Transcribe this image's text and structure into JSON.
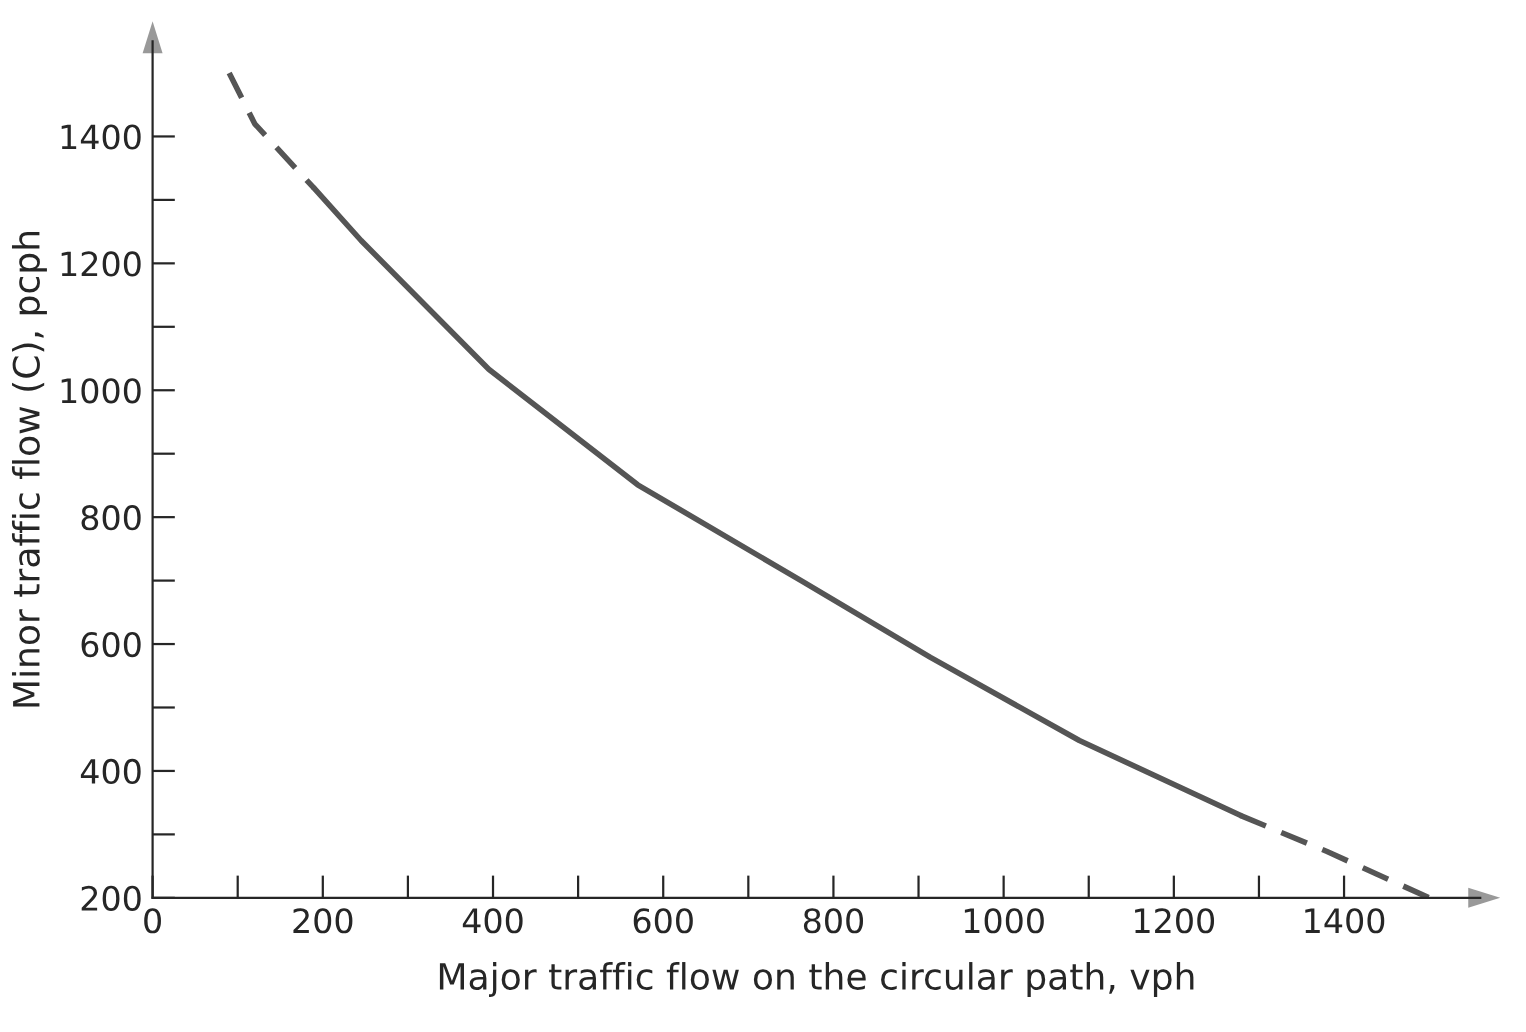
{
  "chart_data": {
    "type": "line",
    "xlabel": "Major traffic flow on the circular path, vph",
    "ylabel": "Minor traffic flow (C), pcph",
    "xlim": [
      0,
      1560
    ],
    "ylim": [
      200,
      1550
    ],
    "xticks": [
      0,
      {
        "value": 100,
        "label": null
      },
      200,
      {
        "value": 300,
        "label": null
      },
      400,
      {
        "value": 500,
        "label": null
      },
      600,
      {
        "value": 700,
        "label": null
      },
      800,
      {
        "value": 900,
        "label": null
      },
      1000,
      {
        "value": 1100,
        "label": null
      },
      1200,
      {
        "value": 1300,
        "label": null
      },
      1400
    ],
    "yticks": [
      200,
      {
        "value": 300,
        "label": null
      },
      400,
      {
        "value": 500,
        "label": null
      },
      600,
      {
        "value": 700,
        "label": null
      },
      800,
      {
        "value": 900,
        "label": null
      },
      1000,
      {
        "value": 1100,
        "label": null
      },
      1200,
      {
        "value": 1300,
        "label": null
      },
      1400
    ],
    "grid": false,
    "marker": "none",
    "series": [
      {
        "color": "#555555",
        "line_style": "dashed",
        "x": [
          90,
          120,
          190
        ],
        "values": [
          1500,
          1420,
          1318
        ]
      },
      {
        "color": "#555555",
        "line_style": "solid",
        "x": [
          190,
          245,
          395,
          570,
          762,
          914,
          1089,
          1278
        ],
        "values": [
          1318,
          1236,
          1033,
          851,
          700,
          579,
          448,
          330
        ]
      },
      {
        "color": "#555555",
        "line_style": "dashed",
        "x": [
          1278,
          1380,
          1500
        ],
        "values": [
          330,
          273,
          200
        ]
      }
    ]
  }
}
